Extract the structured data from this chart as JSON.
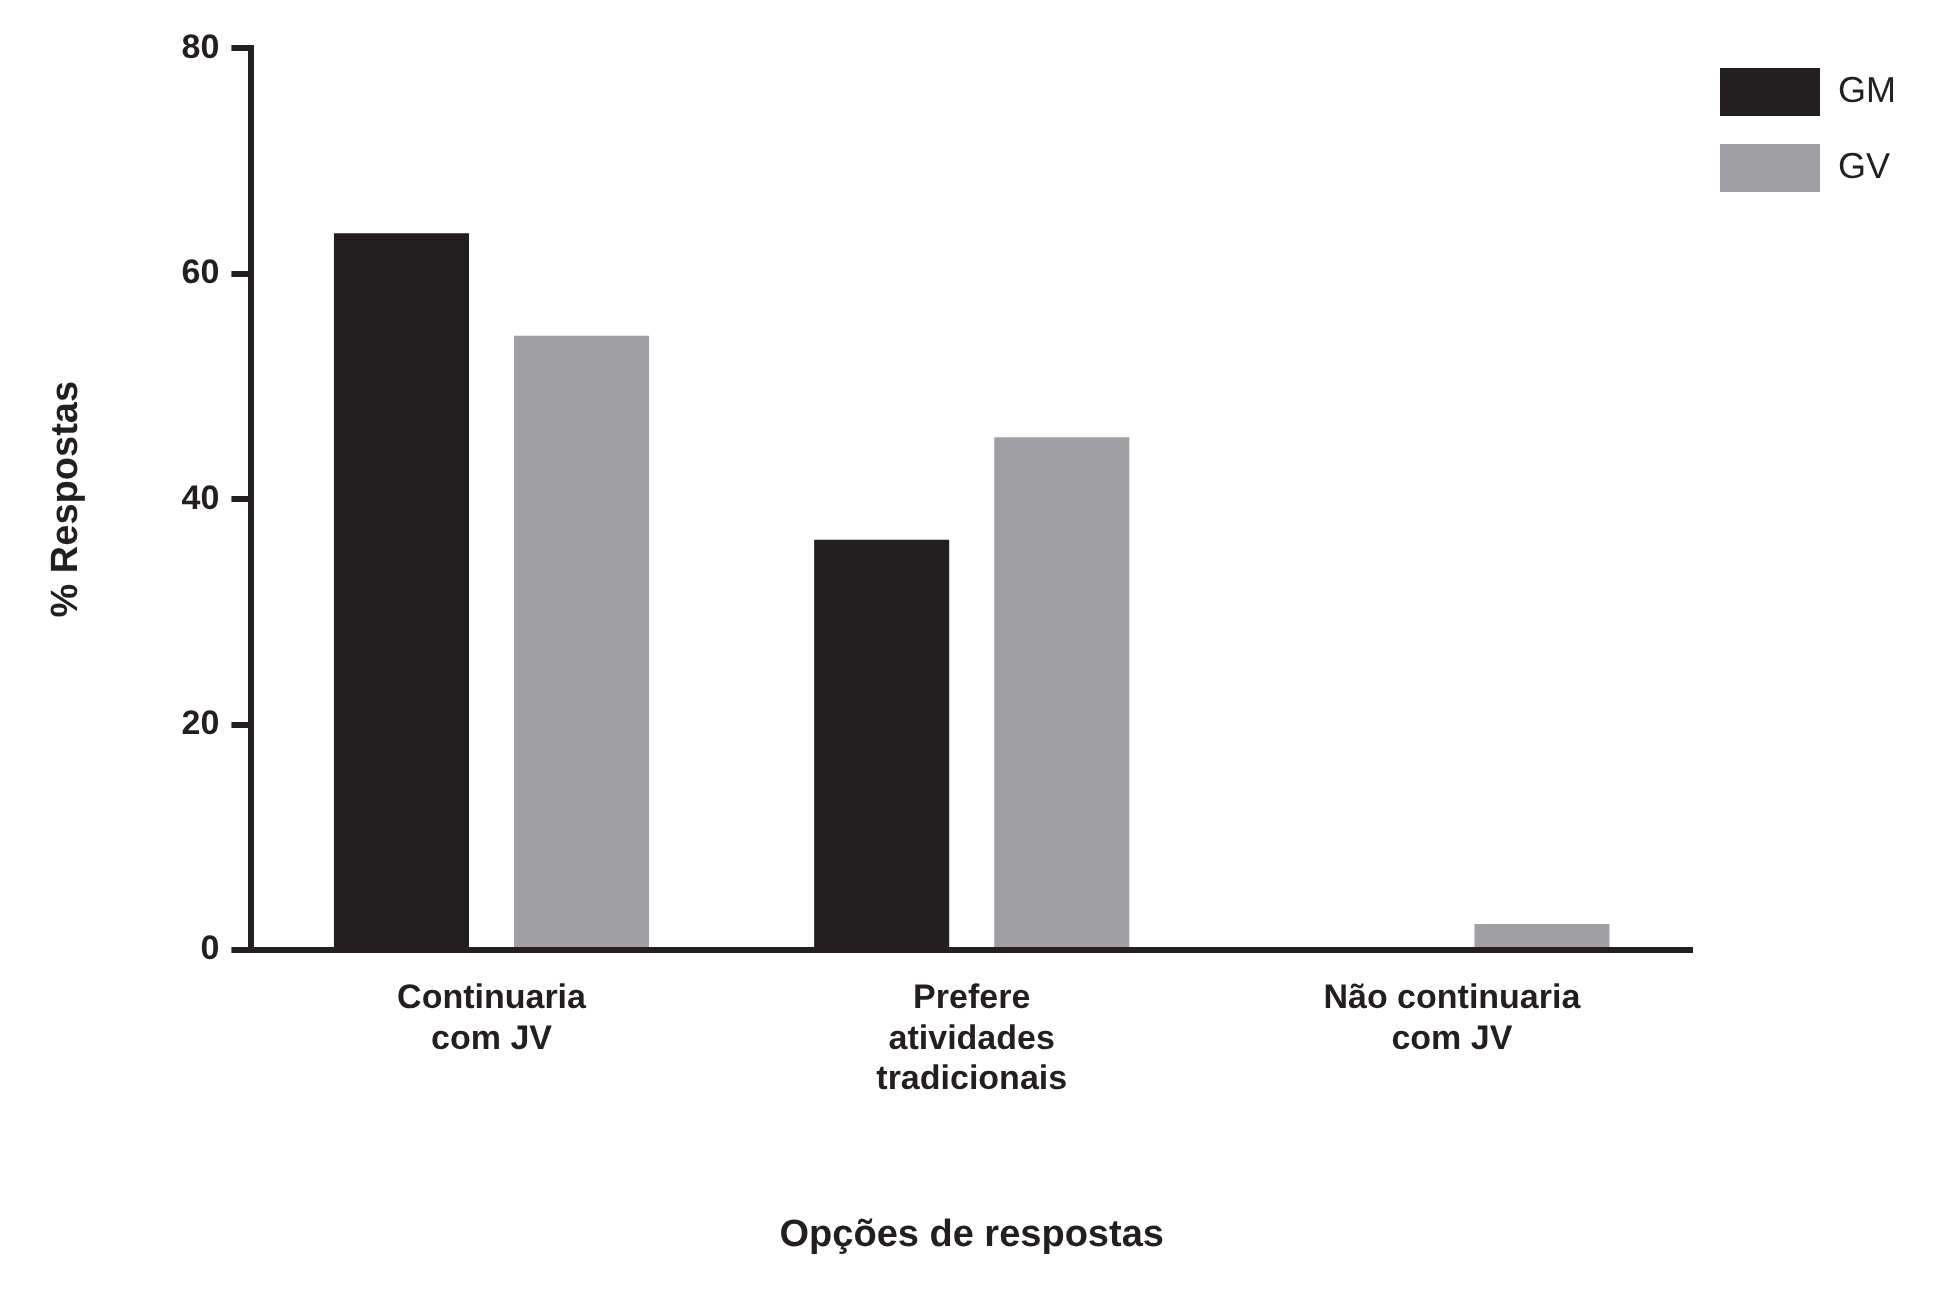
{
  "chart_data": {
    "type": "bar",
    "xlabel": "Opções de respostas",
    "ylabel": "% Respostas",
    "categories": [
      "Continuaria\ncom JV",
      "Prefere\natividades\ntradicionais",
      "Não continuaria\ncom JV"
    ],
    "series": [
      {
        "name": "GM",
        "color": "#231f20",
        "values": [
          63.6,
          36.4,
          0
        ]
      },
      {
        "name": "GV",
        "color": "#a0a0a4",
        "values": [
          54.5,
          45.5,
          2.3
        ]
      }
    ],
    "ylim": [
      0,
      80
    ],
    "yticks": [
      0,
      20,
      40,
      60,
      80
    ],
    "grid": false,
    "legend": "top right"
  }
}
